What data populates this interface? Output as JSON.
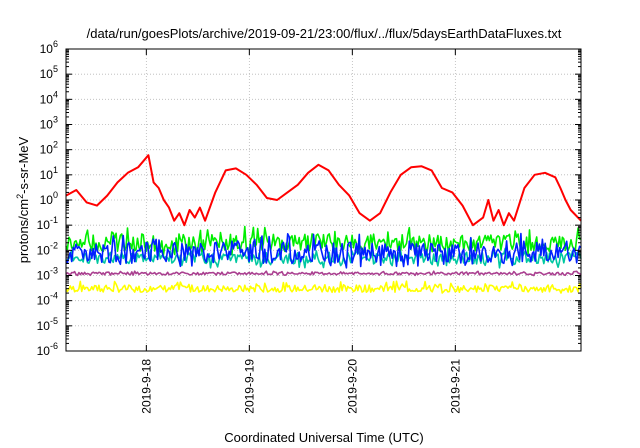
{
  "chart_data": {
    "type": "line",
    "title": "/data/run/goesPlots/archive/2019-09-21/23:00/flux/../flux/5daysEarthDataFluxes.txt",
    "xlabel": "Coordinated Universal Time (UTC)",
    "ylabel_base": "protons/cm",
    "ylabel_sup": "2",
    "ylabel_rest": "-s-sr-MeV",
    "x_tick_labels": [
      "2019-9-18",
      "2019-9-19",
      "2019-9-20",
      "2019-9-21"
    ],
    "x_ticks": [
      0.78,
      1.78,
      2.78,
      3.78
    ],
    "xlim": [
      0,
      5
    ],
    "yscale": "log",
    "ylim": [
      1e-06,
      1000000.0
    ],
    "y_tick_exponents": [
      -6,
      -5,
      -4,
      -3,
      -2,
      -1,
      0,
      1,
      2,
      3,
      4,
      5,
      6
    ],
    "grid": true,
    "series_colors": {
      "red": "#ff0000",
      "green": "#00ee00",
      "teal": "#00c8a0",
      "blue": "#0020ff",
      "purple": "#aa4090",
      "yellow": "#ffff00"
    },
    "series": [
      {
        "color": "#ff0000",
        "x": [
          0.0,
          0.1,
          0.2,
          0.3,
          0.4,
          0.5,
          0.6,
          0.7,
          0.8,
          0.85,
          0.9,
          0.95,
          1.0,
          1.05,
          1.1,
          1.15,
          1.2,
          1.25,
          1.3,
          1.35,
          1.45,
          1.55,
          1.65,
          1.75,
          1.85,
          1.95,
          2.05,
          2.15,
          2.25,
          2.35,
          2.45,
          2.55,
          2.65,
          2.75,
          2.85,
          2.95,
          3.05,
          3.15,
          3.25,
          3.35,
          3.45,
          3.55,
          3.65,
          3.75,
          3.85,
          3.95,
          4.05,
          4.1,
          4.15,
          4.2,
          4.25,
          4.3,
          4.35,
          4.45,
          4.55,
          4.65,
          4.75,
          4.8,
          4.85,
          4.9,
          5.0
        ],
        "y": [
          1.5,
          2.5,
          0.8,
          0.6,
          1.5,
          5,
          12,
          20,
          60,
          5,
          3,
          1,
          0.5,
          0.15,
          0.3,
          0.1,
          0.4,
          0.2,
          0.5,
          0.15,
          2,
          15,
          18,
          10,
          4,
          1.2,
          1,
          2,
          4,
          12,
          25,
          15,
          4,
          1.5,
          0.3,
          0.15,
          0.3,
          2,
          10,
          20,
          22,
          15,
          3,
          2,
          0.6,
          0.1,
          0.2,
          1,
          0.15,
          0.4,
          0.1,
          0.3,
          0.15,
          3,
          10,
          12,
          8,
          3,
          1,
          0.4,
          0.15
        ]
      },
      {
        "color": "#00ee00",
        "x": [
          0,
          5
        ],
        "y": [
          0.02,
          0.02
        ],
        "band": [
          0.006,
          0.09
        ]
      },
      {
        "color": "#00c8a0",
        "x": [
          0,
          5
        ],
        "y": [
          0.005,
          0.005
        ],
        "band": [
          0.002,
          0.012
        ]
      },
      {
        "color": "#0020ff",
        "x": [
          0,
          5
        ],
        "y": [
          0.008,
          0.008
        ],
        "band": [
          0.002,
          0.05
        ]
      },
      {
        "color": "#aa4090",
        "x": [
          0,
          5
        ],
        "y": [
          0.0012,
          0.0012
        ],
        "band": [
          0.001,
          0.0015
        ]
      },
      {
        "color": "#ffff00",
        "x": [
          0,
          5
        ],
        "y": [
          0.0003,
          0.0003
        ],
        "band": [
          0.0002,
          0.0006
        ]
      }
    ]
  }
}
